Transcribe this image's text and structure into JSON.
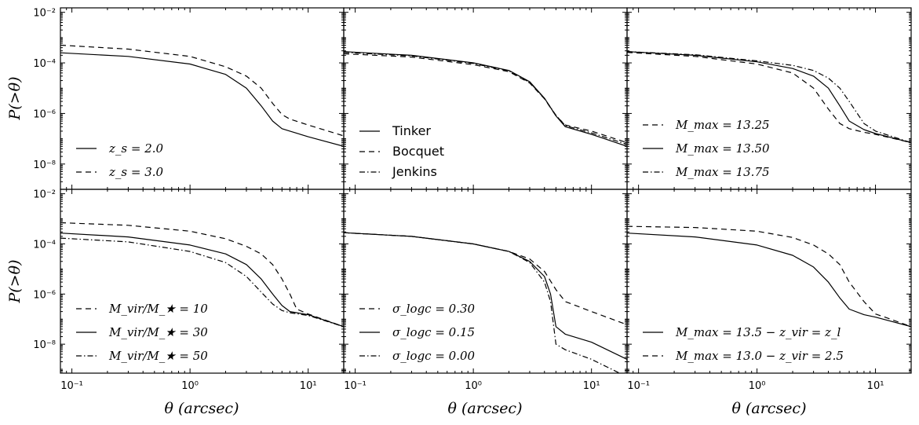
{
  "figure": {
    "ylabel": "P(>θ)",
    "xlabel": "θ (arcsec)",
    "x_ticks": [
      {
        "value": 0.1,
        "label": "10⁻¹"
      },
      {
        "value": 1,
        "label": "10⁰"
      },
      {
        "value": 10,
        "label": "10¹"
      }
    ],
    "y_ticks": [
      {
        "value": 1e-08,
        "label": "10⁻⁸"
      },
      {
        "value": 1e-06,
        "label": "10⁻⁶"
      },
      {
        "value": 0.0001,
        "label": "10⁻⁴"
      },
      {
        "value": 0.01,
        "label": "10⁻²"
      }
    ]
  },
  "chart_data": [
    {
      "type": "line",
      "panel": "top-left",
      "xscale": "log",
      "yscale": "log",
      "xlim": [
        0.08,
        20
      ],
      "ylim": [
        1e-09,
        0.015
      ],
      "legend_placement": "bottom-left",
      "legend_style": "math",
      "series": [
        {
          "name": "z_s = 2.0",
          "dash": "solid",
          "x": [
            0.08,
            0.3,
            1,
            2,
            3,
            4,
            5,
            6,
            7,
            10,
            20
          ],
          "y": [
            0.00025,
            0.00018,
            9e-05,
            3.5e-05,
            1e-05,
            2e-06,
            5e-07,
            2.5e-07,
            2e-07,
            1.2e-07,
            5e-08
          ]
        },
        {
          "name": "z_s = 3.0",
          "dash": "dashed",
          "x": [
            0.08,
            0.3,
            1,
            2,
            3,
            4,
            5,
            6,
            7,
            10,
            20
          ],
          "y": [
            0.0005,
            0.00035,
            0.00018,
            7e-05,
            3e-05,
            1e-05,
            2.5e-06,
            9e-07,
            6e-07,
            3.5e-07,
            1.3e-07
          ]
        }
      ]
    },
    {
      "type": "line",
      "panel": "top-middle",
      "xscale": "log",
      "yscale": "log",
      "xlim": [
        0.08,
        20
      ],
      "ylim": [
        1e-09,
        0.015
      ],
      "legend_placement": "bottom-left",
      "legend_style": "text",
      "series": [
        {
          "name": "Tinker",
          "dash": "solid",
          "x": [
            0.08,
            0.3,
            1,
            2,
            3,
            4,
            5,
            6,
            10,
            20
          ],
          "y": [
            0.00028,
            0.0002,
            0.0001,
            5e-05,
            1.8e-05,
            4e-06,
            8e-07,
            3e-07,
            1.5e-07,
            5e-08
          ]
        },
        {
          "name": "Bocquet",
          "dash": "dashed",
          "x": [
            0.08,
            0.3,
            1,
            2,
            3,
            4,
            5,
            6,
            10,
            20
          ],
          "y": [
            0.00023,
            0.00017,
            8.5e-05,
            4.5e-05,
            1.6e-05,
            3.8e-06,
            8e-07,
            3.5e-07,
            2e-07,
            7e-08
          ]
        },
        {
          "name": "Jenkins",
          "dash": "dashdot",
          "x": [
            0.08,
            0.3,
            1,
            2,
            3,
            4,
            5,
            6,
            10,
            20
          ],
          "y": [
            0.00026,
            0.00019,
            9.5e-05,
            4.8e-05,
            1.7e-05,
            3.9e-06,
            8.5e-07,
            3.3e-07,
            1.7e-07,
            6e-08
          ]
        }
      ]
    },
    {
      "type": "line",
      "panel": "top-right",
      "xscale": "log",
      "yscale": "log",
      "xlim": [
        0.08,
        20
      ],
      "ylim": [
        1e-09,
        0.015
      ],
      "legend_placement": "bottom-left",
      "legend_style": "math",
      "series": [
        {
          "name": "M_max = 13.25",
          "dash": "dashed",
          "x": [
            0.08,
            0.3,
            1,
            2,
            3,
            4,
            5,
            6,
            8,
            10,
            20
          ],
          "y": [
            0.00026,
            0.00018,
            9e-05,
            4e-05,
            1e-05,
            1.5e-06,
            4e-07,
            2.5e-07,
            1.8e-07,
            1.5e-07,
            7e-08
          ]
        },
        {
          "name": "M_max = 13.50",
          "dash": "solid",
          "x": [
            0.08,
            0.3,
            1,
            2,
            3,
            4,
            5,
            6,
            8,
            10,
            20
          ],
          "y": [
            0.00028,
            0.0002,
            0.00011,
            6e-05,
            3e-05,
            1e-05,
            2e-06,
            5e-07,
            2.3e-07,
            1.6e-07,
            7e-08
          ]
        },
        {
          "name": "M_max = 13.75",
          "dash": "dashdot",
          "x": [
            0.08,
            0.3,
            1,
            2,
            3,
            4,
            5,
            6,
            8,
            10,
            20
          ],
          "y": [
            0.00028,
            0.00021,
            0.00012,
            8e-05,
            5e-05,
            2.5e-05,
            1e-05,
            3e-06,
            4e-07,
            2e-07,
            7e-08
          ]
        }
      ]
    },
    {
      "type": "line",
      "panel": "bottom-left",
      "xscale": "log",
      "yscale": "log",
      "xlim": [
        0.08,
        20
      ],
      "ylim": [
        7e-10,
        0.015
      ],
      "legend_placement": "bottom-left",
      "legend_style": "math",
      "series": [
        {
          "name": "M_vir/M_★ = 10",
          "dash": "dashed",
          "x": [
            0.08,
            0.3,
            1,
            2,
            3,
            4,
            5,
            6,
            7,
            8,
            10,
            20
          ],
          "y": [
            0.0007,
            0.00055,
            0.00032,
            0.00016,
            8e-05,
            4e-05,
            1.5e-05,
            4e-06,
            1e-06,
            2.5e-07,
            1.6e-07,
            5e-08
          ]
        },
        {
          "name": "M_vir/M_★ = 30",
          "dash": "solid",
          "x": [
            0.08,
            0.3,
            1,
            2,
            3,
            4,
            5,
            6,
            7,
            10,
            20
          ],
          "y": [
            0.00027,
            0.00019,
            9e-05,
            4e-05,
            1.5e-05,
            4e-06,
            1e-06,
            3.5e-07,
            2e-07,
            1.5e-07,
            5e-08
          ]
        },
        {
          "name": "M_vir/M_★ = 50",
          "dash": "dashdot",
          "x": [
            0.08,
            0.3,
            1,
            2,
            3,
            4,
            5,
            6,
            7,
            10,
            20
          ],
          "y": [
            0.00017,
            0.00012,
            5e-05,
            1.8e-05,
            5e-06,
            1.2e-06,
            4e-07,
            2.2e-07,
            1.8e-07,
            1.4e-07,
            5e-08
          ]
        }
      ]
    },
    {
      "type": "line",
      "panel": "bottom-middle",
      "xscale": "log",
      "yscale": "log",
      "xlim": [
        0.08,
        20
      ],
      "ylim": [
        7e-10,
        0.015
      ],
      "legend_placement": "bottom-left",
      "legend_style": "math",
      "series": [
        {
          "name": "σ_logc = 0.30",
          "dash": "dashed",
          "x": [
            0.08,
            0.3,
            1,
            2,
            3,
            4,
            5,
            6,
            8,
            10,
            20
          ],
          "y": [
            0.00028,
            0.0002,
            0.0001,
            5e-05,
            2.5e-05,
            8e-06,
            1.5e-06,
            5e-07,
            3e-07,
            2e-07,
            6e-08
          ]
        },
        {
          "name": "σ_logc = 0.15",
          "dash": "solid",
          "x": [
            0.08,
            0.3,
            1,
            2,
            3,
            4,
            4.5,
            5,
            6,
            10,
            20
          ],
          "y": [
            0.00028,
            0.0002,
            0.0001,
            5e-05,
            2e-05,
            5e-06,
            1e-06,
            5e-08,
            2.5e-08,
            1.2e-08,
            2.5e-09
          ]
        },
        {
          "name": "σ_logc = 0.00",
          "dash": "dashdot",
          "x": [
            0.08,
            0.3,
            1,
            2,
            3,
            4,
            4.5,
            5,
            6,
            10,
            20
          ],
          "y": [
            0.00028,
            0.0002,
            0.0001,
            5e-05,
            1.8e-05,
            3e-06,
            5e-07,
            1e-08,
            6e-09,
            2.5e-09,
            5e-10
          ]
        }
      ]
    },
    {
      "type": "line",
      "panel": "bottom-right",
      "xscale": "log",
      "yscale": "log",
      "xlim": [
        0.08,
        20
      ],
      "ylim": [
        7e-10,
        0.015
      ],
      "legend_placement": "bottom-left",
      "legend_style": "math",
      "series": [
        {
          "name": "M_max = 13.5 − z_vir = z_l",
          "dash": "solid",
          "x": [
            0.08,
            0.3,
            1,
            2,
            3,
            4,
            5,
            6,
            8,
            10,
            20
          ],
          "y": [
            0.00027,
            0.00019,
            9e-05,
            3.5e-05,
            1.2e-05,
            3e-06,
            7e-07,
            2.5e-07,
            1.5e-07,
            1.2e-07,
            5e-08
          ]
        },
        {
          "name": "M_max = 13.0 − z_vir = 2.5",
          "dash": "dashed",
          "x": [
            0.08,
            0.3,
            1,
            2,
            3,
            4,
            5,
            6,
            8,
            10,
            12,
            20
          ],
          "y": [
            0.0005,
            0.00045,
            0.00032,
            0.00018,
            9e-05,
            4e-05,
            1.5e-05,
            3e-06,
            5e-07,
            1.6e-07,
            1.2e-07,
            5e-08
          ]
        }
      ]
    }
  ]
}
